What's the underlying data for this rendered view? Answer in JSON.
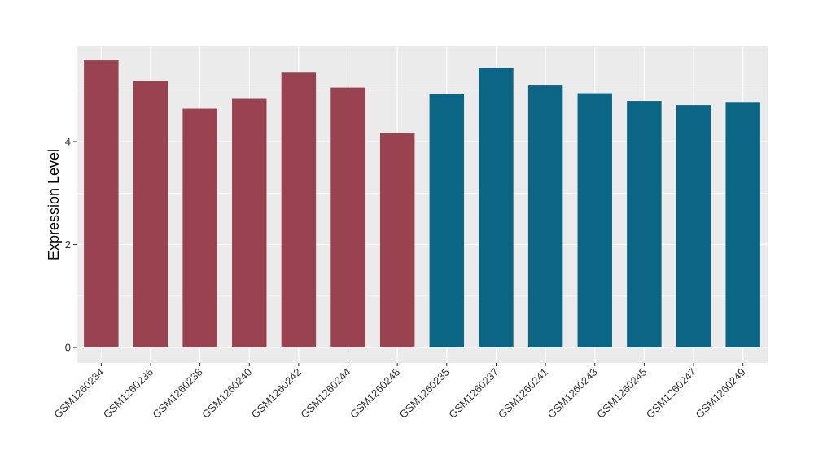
{
  "chart_data": {
    "type": "bar",
    "title": "",
    "xlabel": "",
    "ylabel": "Expression Level",
    "ylim": [
      -0.3,
      5.85
    ],
    "yticks": [
      0,
      2,
      4
    ],
    "grid": true,
    "categories": [
      "GSM1260234",
      "GSM1260236",
      "GSM1260238",
      "GSM1260240",
      "GSM1260242",
      "GSM1260244",
      "GSM1260248",
      "GSM1260235",
      "GSM1260237",
      "GSM1260241",
      "GSM1260243",
      "GSM1260245",
      "GSM1260247",
      "GSM1260249"
    ],
    "values": [
      5.58,
      5.18,
      4.64,
      4.83,
      5.34,
      5.05,
      4.17,
      4.92,
      5.43,
      5.09,
      4.94,
      4.79,
      4.71,
      4.77
    ],
    "colors": [
      "#9a4350",
      "#9a4350",
      "#9a4350",
      "#9a4350",
      "#9a4350",
      "#9a4350",
      "#9a4350",
      "#0b6685",
      "#0b6685",
      "#0b6685",
      "#0b6685",
      "#0b6685",
      "#0b6685",
      "#0b6685"
    ],
    "panel_background": "#ebebeb",
    "gridline_color": "#ffffff"
  }
}
